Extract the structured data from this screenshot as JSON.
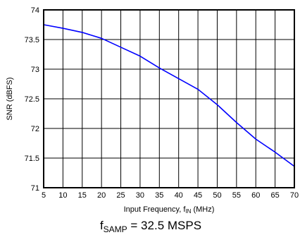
{
  "chart_data": {
    "type": "line",
    "xlabel": {
      "prefix": "Input Frequency, f",
      "sub": "IN",
      "suffix": " (MHz)"
    },
    "ylabel": "SNR (dBFS)",
    "caption": {
      "prefix": "f",
      "sub": "SAMP",
      "suffix": " = 32.5 MSPS"
    },
    "xlim": [
      5,
      70
    ],
    "ylim": [
      71,
      74
    ],
    "xticks": [
      5,
      10,
      15,
      20,
      25,
      30,
      35,
      40,
      45,
      50,
      55,
      60,
      65,
      70
    ],
    "yticks": [
      71,
      71.5,
      72,
      72.5,
      73,
      73.5,
      74
    ],
    "grid": true,
    "series": [
      {
        "color": "#0000ff",
        "x": [
          5,
          10,
          15,
          20,
          25,
          30,
          35,
          40,
          45,
          50,
          55,
          60,
          65,
          70
        ],
        "y": [
          73.75,
          73.69,
          73.62,
          73.52,
          73.37,
          73.22,
          73.02,
          72.84,
          72.66,
          72.4,
          72.1,
          71.82,
          71.6,
          71.36
        ]
      }
    ]
  }
}
